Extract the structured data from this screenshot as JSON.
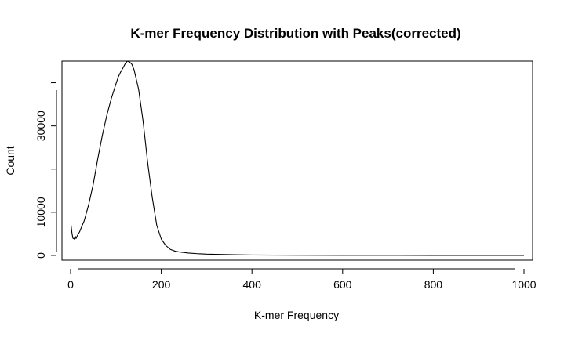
{
  "chart_data": {
    "type": "line",
    "title": "K-mer Frequency Distribution with Peaks(corrected)",
    "xlabel": "K-mer Frequency",
    "ylabel": "Count",
    "xlim": [
      -19,
      1019
    ],
    "ylim": [
      -1100,
      45000
    ],
    "xticks": [
      0,
      200,
      400,
      600,
      800,
      1000
    ],
    "yticks": [
      0,
      10000,
      30000
    ],
    "xtick_labels": [
      "0",
      "200",
      "400",
      "600",
      "800",
      "1000"
    ],
    "ytick_labels": [
      "0",
      "10000",
      "30000"
    ],
    "grid": false,
    "line_color": "#000000",
    "series": [
      {
        "x": [
          1,
          3,
          5,
          8,
          10,
          12,
          15,
          20,
          25,
          30,
          40,
          50,
          60,
          70,
          80,
          90,
          100,
          105,
          110,
          115,
          120,
          125,
          130,
          135,
          140,
          150,
          160,
          170,
          180,
          190,
          200,
          210,
          220,
          230,
          240,
          260,
          280,
          300,
          330,
          360,
          400,
          450,
          500,
          600,
          700,
          800,
          900,
          1000
        ],
        "y": [
          7000,
          5200,
          4000,
          3800,
          4500,
          3900,
          4600,
          5500,
          6800,
          8000,
          11800,
          16500,
          22400,
          27800,
          32500,
          36400,
          39700,
          41300,
          42400,
          43300,
          44300,
          45000,
          44800,
          44300,
          43000,
          38500,
          31000,
          21500,
          13500,
          7000,
          3800,
          2300,
          1400,
          1000,
          800,
          550,
          400,
          300,
          220,
          150,
          100,
          60,
          40,
          20,
          10,
          5,
          3,
          2
        ]
      }
    ]
  }
}
